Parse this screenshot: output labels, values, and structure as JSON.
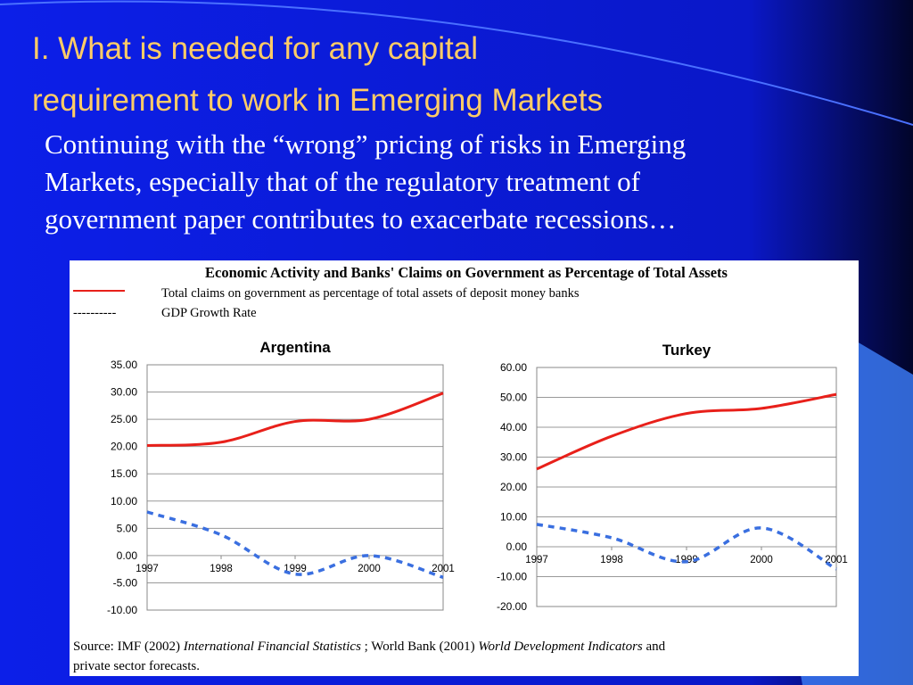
{
  "slide": {
    "title": [
      "I. What is needed for any capital",
      "requirement to work in Emerging Markets"
    ],
    "body": [
      "Continuing with the “wrong” pricing of risks in Emerging",
      "Markets, especially that of the regulatory treatment of",
      "government paper contributes to exacerbate recessions…"
    ],
    "panel_title": "Economic Activity and Banks' Claims on Government as Percentage of Total Assets",
    "legend": [
      "Total claims on government as percentage of total assets of deposit money banks",
      "----------",
      "GDP Growth Rate"
    ],
    "source": [
      "Source: IMF (2002)",
      "International Financial Statistics",
      "; World Bank (2001)",
      "World Development Indicators",
      "and",
      "private sector forecasts."
    ]
  },
  "chart_data": [
    {
      "type": "line",
      "title": "Argentina",
      "x": [
        1997,
        1998,
        1999,
        2000,
        2001
      ],
      "xlim": [
        1997,
        2001
      ],
      "xticks": [
        1997,
        1998,
        1999,
        2000,
        2001
      ],
      "series": [
        {
          "color": "#e8201a",
          "dash": false,
          "values": [
            20.2,
            20.8,
            24.6,
            25.0,
            29.8
          ]
        },
        {
          "color": "#3a6fe0",
          "dash": true,
          "values": [
            8.0,
            3.8,
            -3.4,
            0.0,
            -4.0
          ]
        }
      ],
      "ylim": [
        -10,
        35
      ],
      "yticks": [
        {
          "value": -10,
          "label": "-10.00"
        },
        {
          "value": -5,
          "label": "-5.00"
        },
        {
          "value": 0,
          "label": "0.00"
        },
        {
          "value": 5,
          "label": "5.00"
        },
        {
          "value": 10,
          "label": "10.00"
        },
        {
          "value": 15,
          "label": "15.00"
        },
        {
          "value": 20,
          "label": "20.00"
        },
        {
          "value": 25,
          "label": "25.00"
        },
        {
          "value": 30,
          "label": "30.00"
        },
        {
          "value": 35,
          "label": "35.00"
        }
      ],
      "grid": true
    },
    {
      "type": "line",
      "title": "Turkey",
      "x": [
        1997,
        1998,
        1999,
        2000,
        2001
      ],
      "xlim": [
        1997,
        2001
      ],
      "xticks": [
        1997,
        1998,
        1999,
        2000,
        2001
      ],
      "series": [
        {
          "color": "#e8201a",
          "dash": false,
          "values": [
            26.0,
            37.0,
            44.6,
            46.3,
            51.0
          ]
        },
        {
          "color": "#3a6fe0",
          "dash": true,
          "values": [
            7.5,
            3.0,
            -5.0,
            6.3,
            -7.5
          ]
        }
      ],
      "ylim": [
        -20,
        60
      ],
      "yticks": [
        {
          "value": -20,
          "label": "-20.00"
        },
        {
          "value": -10,
          "label": "-10.00"
        },
        {
          "value": 0,
          "label": "0.00"
        },
        {
          "value": 10,
          "label": "10.00"
        },
        {
          "value": 20,
          "label": "20.00"
        },
        {
          "value": 30,
          "label": "30.00"
        },
        {
          "value": 40,
          "label": "40.00"
        },
        {
          "value": 50,
          "label": "50.00"
        },
        {
          "value": 60,
          "label": "60.00"
        }
      ],
      "grid": true
    }
  ]
}
